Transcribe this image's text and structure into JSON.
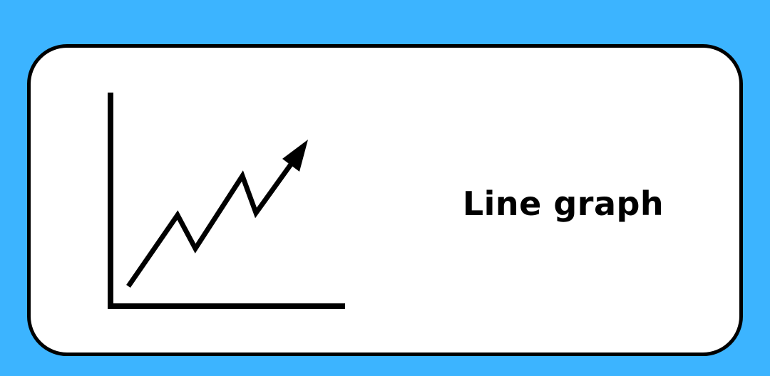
{
  "card": {
    "title": "Line graph"
  },
  "icon": {
    "name": "line-graph-icon"
  },
  "colors": {
    "background": "#3cb4ff",
    "card": "#ffffff",
    "stroke": "#000000"
  }
}
